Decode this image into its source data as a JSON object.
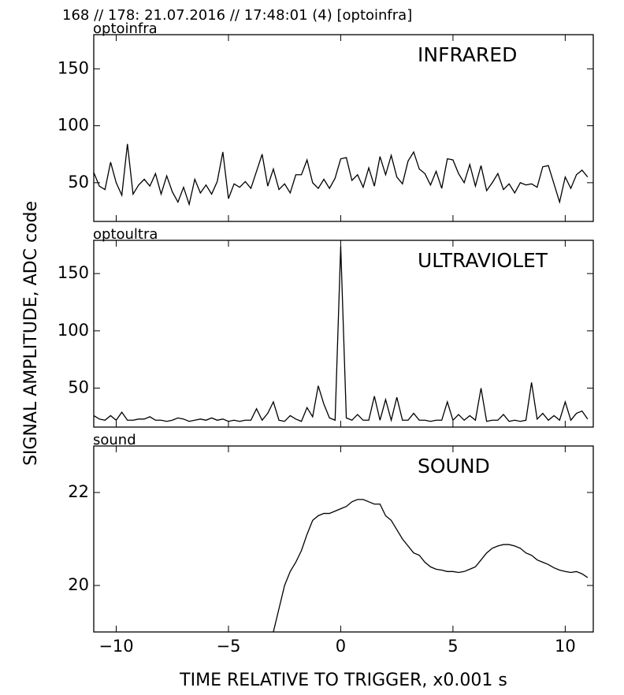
{
  "header": "168 // 178:   21.07.2016 // 17:48:01 (4)  [optoinfra]",
  "ylabel": "SIGNAL AMPLITUDE,  ADC code",
  "xlabel": "TIME RELATIVE TO TRIGGER,   x0.001 s",
  "chart_data": [
    {
      "type": "line",
      "label": "optoinfra",
      "title": "INFRARED",
      "color": "#000000",
      "x": [
        -11,
        -10.75,
        -10.5,
        -10.25,
        -10,
        -9.75,
        -9.5,
        -9.25,
        -9,
        -8.75,
        -8.5,
        -8.25,
        -8,
        -7.75,
        -7.5,
        -7.25,
        -7,
        -6.75,
        -6.5,
        -6.25,
        -6,
        -5.75,
        -5.5,
        -5.25,
        -5,
        -4.75,
        -4.5,
        -4.25,
        -4,
        -3.75,
        -3.5,
        -3.25,
        -3,
        -2.75,
        -2.5,
        -2.25,
        -2,
        -1.75,
        -1.5,
        -1.25,
        -1,
        -0.75,
        -0.5,
        -0.25,
        0,
        0.25,
        0.5,
        0.75,
        1,
        1.25,
        1.5,
        1.75,
        2,
        2.25,
        2.5,
        2.75,
        3,
        3.25,
        3.5,
        3.75,
        4,
        4.25,
        4.5,
        4.75,
        5,
        5.25,
        5.5,
        5.75,
        6,
        6.25,
        6.5,
        6.75,
        7,
        7.25,
        7.5,
        7.75,
        8,
        8.25,
        8.5,
        8.75,
        9,
        9.25,
        9.5,
        9.75,
        10,
        10.25,
        10.5,
        10.75,
        11
      ],
      "values": [
        59,
        47,
        44,
        68,
        50,
        39,
        84,
        40,
        48,
        53,
        47,
        58,
        40,
        56,
        42,
        33,
        46,
        31,
        53,
        41,
        48,
        40,
        51,
        77,
        36,
        49,
        46,
        51,
        45,
        60,
        75,
        47,
        62,
        44,
        49,
        41,
        57,
        57,
        70,
        50,
        45,
        53,
        45,
        54,
        71,
        72,
        52,
        57,
        46,
        63,
        47,
        73,
        57,
        74,
        55,
        49,
        69,
        77,
        62,
        58,
        48,
        60,
        45,
        71,
        70,
        58,
        50,
        66,
        47,
        65,
        43,
        50,
        58,
        44,
        49,
        41,
        50,
        48,
        49,
        46,
        64,
        65,
        49,
        33,
        55,
        45,
        57,
        61,
        55
      ],
      "xlim": [
        -11,
        11.25
      ],
      "xticks": [
        -10,
        -5,
        0,
        5,
        10
      ],
      "ylim": [
        16,
        180
      ],
      "yticks": [
        50,
        100,
        150
      ]
    },
    {
      "type": "line",
      "label": "optoultra",
      "title": "ULTRAVIOLET",
      "color": "#000000",
      "x": [
        -11,
        -10.75,
        -10.5,
        -10.25,
        -10,
        -9.75,
        -9.5,
        -9.25,
        -9,
        -8.75,
        -8.5,
        -8.25,
        -8,
        -7.75,
        -7.5,
        -7.25,
        -7,
        -6.75,
        -6.5,
        -6.25,
        -6,
        -5.75,
        -5.5,
        -5.25,
        -5,
        -4.75,
        -4.5,
        -4.25,
        -4,
        -3.75,
        -3.5,
        -3.25,
        -3,
        -2.75,
        -2.5,
        -2.25,
        -2,
        -1.75,
        -1.5,
        -1.25,
        -1,
        -0.75,
        -0.5,
        -0.25,
        0,
        0.25,
        0.5,
        0.75,
        1,
        1.25,
        1.5,
        1.75,
        2,
        2.25,
        2.5,
        2.75,
        3,
        3.25,
        3.5,
        3.75,
        4,
        4.25,
        4.5,
        4.75,
        5,
        5.25,
        5.5,
        5.75,
        6,
        6.25,
        6.5,
        6.75,
        7,
        7.25,
        7.5,
        7.75,
        8,
        8.25,
        8.5,
        8.75,
        9,
        9.25,
        9.5,
        9.75,
        10,
        10.25,
        10.5,
        10.75,
        11
      ],
      "values": [
        26,
        23,
        22,
        26,
        22,
        29,
        22,
        22,
        23,
        23,
        25,
        22,
        22,
        21,
        22,
        24,
        23,
        21,
        22,
        23,
        22,
        24,
        22,
        23,
        21,
        22,
        21,
        22,
        22,
        32,
        22,
        28,
        38,
        22,
        21,
        26,
        23,
        21,
        33,
        25,
        52,
        36,
        24,
        22,
        174,
        24,
        22,
        27,
        22,
        22,
        43,
        22,
        40,
        22,
        42,
        22,
        22,
        28,
        22,
        22,
        21,
        22,
        22,
        38,
        22,
        27,
        22,
        26,
        22,
        50,
        21,
        22,
        22,
        27,
        21,
        22,
        21,
        22,
        55,
        23,
        28,
        22,
        26,
        22,
        38,
        22,
        28,
        30,
        23
      ],
      "xlim": [
        -11,
        11.25
      ],
      "xticks": [
        -10,
        -5,
        0,
        5,
        10
      ],
      "ylim": [
        16,
        179
      ],
      "yticks": [
        50,
        100,
        150
      ]
    },
    {
      "type": "line",
      "label": "sound",
      "title": "SOUND",
      "color": "#000000",
      "x": [
        -3,
        -2.75,
        -2.5,
        -2.25,
        -2,
        -1.75,
        -1.5,
        -1.25,
        -1,
        -0.75,
        -0.5,
        -0.25,
        0,
        0.25,
        0.5,
        0.75,
        1,
        1.25,
        1.5,
        1.75,
        2,
        2.25,
        2.5,
        2.75,
        3,
        3.25,
        3.5,
        3.75,
        4,
        4.25,
        4.5,
        4.75,
        5,
        5.25,
        5.5,
        5.75,
        6,
        6.25,
        6.5,
        6.75,
        7,
        7.25,
        7.5,
        7.75,
        8,
        8.25,
        8.5,
        8.75,
        9,
        9.25,
        9.5,
        9.75,
        10,
        10.25,
        10.5,
        10.75,
        11
      ],
      "values": [
        19.0,
        19.5,
        20.0,
        20.3,
        20.5,
        20.75,
        21.1,
        21.4,
        21.5,
        21.55,
        21.55,
        21.6,
        21.65,
        21.7,
        21.8,
        21.85,
        21.85,
        21.8,
        21.75,
        21.75,
        21.5,
        21.4,
        21.2,
        21.0,
        20.85,
        20.7,
        20.65,
        20.5,
        20.4,
        20.35,
        20.33,
        20.3,
        20.3,
        20.28,
        20.3,
        20.35,
        20.4,
        20.55,
        20.7,
        20.8,
        20.85,
        20.88,
        20.88,
        20.85,
        20.8,
        20.7,
        20.65,
        20.55,
        20.5,
        20.45,
        20.38,
        20.33,
        20.3,
        20.28,
        20.3,
        20.25,
        20.17
      ],
      "xlim": [
        -11,
        11.25
      ],
      "xticks": [
        {
          "value": -10,
          "label": "−10"
        },
        {
          "value": -5,
          "label": "−5"
        },
        0,
        5,
        10
      ],
      "ylim": [
        19,
        23
      ],
      "yticks": [
        20,
        22
      ]
    }
  ]
}
